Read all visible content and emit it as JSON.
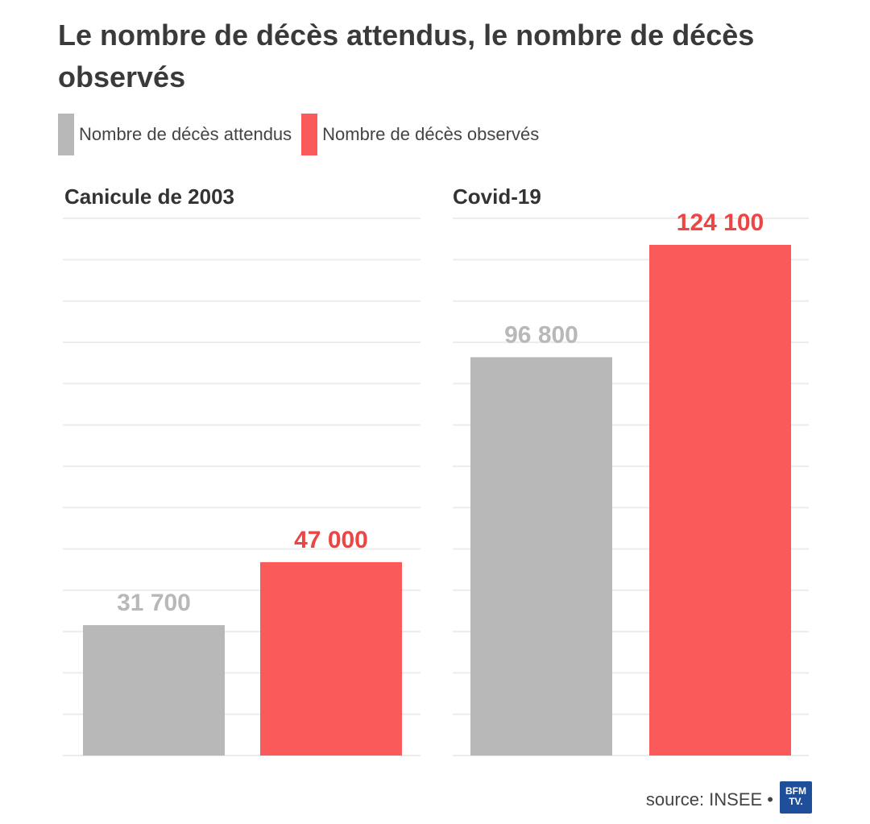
{
  "header": {
    "title": "Le nombre de décès attendus, le nombre de décès observés"
  },
  "legend": {
    "items": [
      {
        "label": "Nombre de décès attendus",
        "color": "#b8b8b8"
      },
      {
        "label": "Nombre de décès observés",
        "color": "#fa5a5a"
      }
    ]
  },
  "colors": {
    "expected": "#b8b8b8",
    "observed": "#fa5a5a",
    "expected_label": "#b8b8b8",
    "observed_label": "#ee4444",
    "gridline": "#ececec"
  },
  "chart_data": {
    "type": "bar",
    "title": "Le nombre de décès attendus, le nombre de décès observés",
    "xlabel": "",
    "ylabel": "",
    "grid": true,
    "legend_position": "top-left",
    "series_names": [
      "Nombre de décès attendus",
      "Nombre de décès observés"
    ],
    "panels": [
      {
        "title": "Canicule de 2003",
        "values": [
          31700,
          47000
        ],
        "value_labels": [
          "31 700",
          "47 000"
        ],
        "ylim": [
          0,
          130000
        ]
      },
      {
        "title": "Covid-19",
        "values": [
          96800,
          124100
        ],
        "value_labels": [
          "96 800",
          "124 100"
        ],
        "ylim": [
          0,
          130000
        ]
      }
    ]
  },
  "footer": {
    "source": "source: INSEE •",
    "logo_text": "BFM TV."
  }
}
